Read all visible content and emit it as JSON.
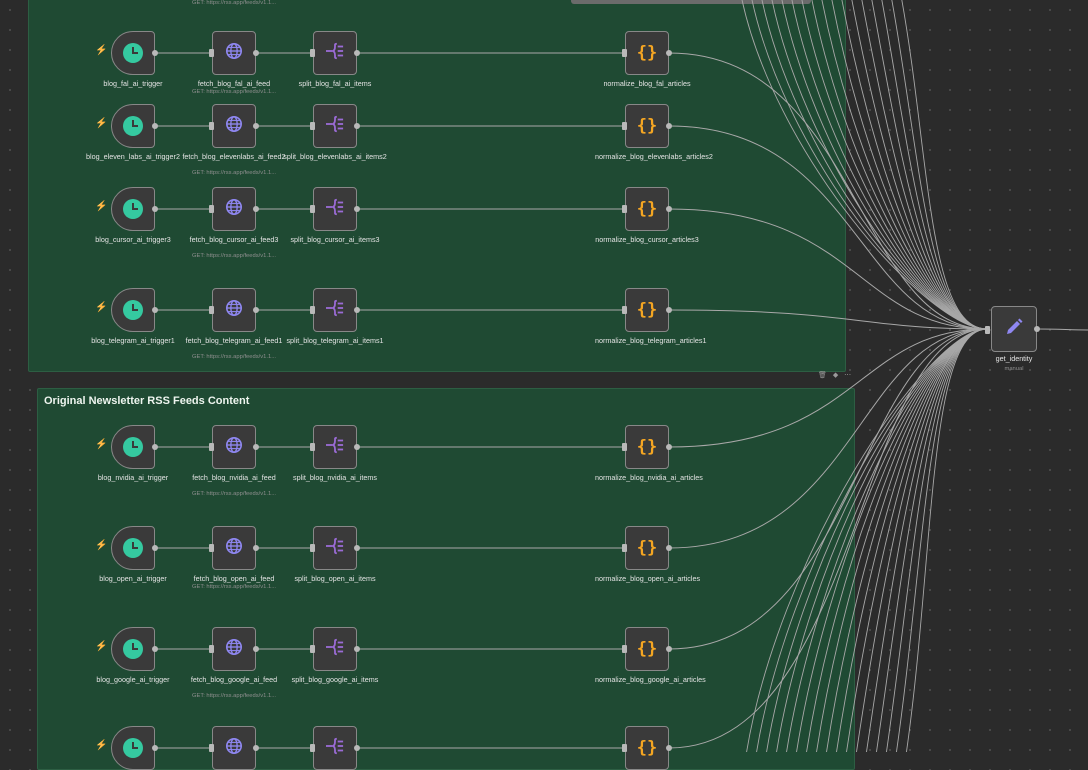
{
  "canvas": {
    "groups": [
      {
        "title": ""
      },
      {
        "title": "Original Newsletter RSS Feeds Content"
      }
    ],
    "top_cut_subtitle": "GET: https://rss.app/feeds/v1.1...",
    "sticky_toolbar": "🗑 ◆ ⋯"
  },
  "workflows": [
    {
      "trigger": "blog_fal_ai_trigger",
      "fetch": "fetch_blog_fal_ai_feed",
      "fetch_sub": "GET: https://rss.app/feeds/v1.1...",
      "split": "split_blog_fal_ai_items",
      "normalize": "normalize_blog_fal_articles"
    },
    {
      "trigger": "blog_eleven_labs_ai_trigger2",
      "fetch": "fetch_blog_elevenlabs_ai_feed2",
      "fetch_sub": "GET: https://rss.app/feeds/v1.1...",
      "split": "split_blog_elevenlabs_ai_items2",
      "normalize": "normalize_blog_elevenlabs_articles2"
    },
    {
      "trigger": "blog_cursor_ai_trigger3",
      "fetch": "fetch_blog_cursor_ai_feed3",
      "fetch_sub": "GET: https://rss.app/feeds/v1.1...",
      "split": "split_blog_cursor_ai_items3",
      "normalize": "normalize_blog_cursor_articles3"
    },
    {
      "trigger": "blog_telegram_ai_trigger1",
      "fetch": "fetch_blog_telegram_ai_feed1",
      "fetch_sub": "GET: https://rss.app/feeds/v1.1...",
      "split": "split_blog_telegram_ai_items1",
      "normalize": "normalize_blog_telegram_articles1"
    },
    {
      "trigger": "blog_nvidia_ai_trigger",
      "fetch": "fetch_blog_nvidia_ai_feed",
      "fetch_sub": "GET: https://rss.app/feeds/v1.1...",
      "split": "split_blog_nvidia_ai_items",
      "normalize": "normalize_blog_nvidia_ai_articles"
    },
    {
      "trigger": "blog_open_ai_trigger",
      "fetch": "fetch_blog_open_ai_feed",
      "fetch_sub": "GET: https://rss.app/feeds/v1.1...",
      "split": "split_blog_open_ai_items",
      "normalize": "normalize_blog_open_ai_articles"
    },
    {
      "trigger": "blog_google_ai_trigger",
      "fetch": "fetch_blog_google_ai_feed",
      "fetch_sub": "GET: https://rss.app/feeds/v1.1...",
      "split": "split_blog_google_ai_items",
      "normalize": "normalize_blog_google_ai_articles"
    },
    {
      "trigger": "",
      "fetch": "",
      "fetch_sub": "",
      "split": "",
      "normalize": ""
    }
  ],
  "identity_node": {
    "label": "get_identity",
    "subtitle": "manual"
  },
  "icons": {
    "trigger": "clock-icon",
    "fetch": "globe-icon",
    "split": "split-out-icon",
    "normalize": "code-braces-icon",
    "identity": "pencil-icon",
    "trigger_badge": "lightning-bolt-icon"
  },
  "colors": {
    "canvas": "#2b2b2b",
    "sticky": "#1f4a33",
    "wire": "#a8a8a8",
    "clock": "#35c9a0",
    "globe": "#8f87f1",
    "split": "#9b6bd6",
    "braces": "#f5a623",
    "bolt": "#ff6d5a"
  }
}
